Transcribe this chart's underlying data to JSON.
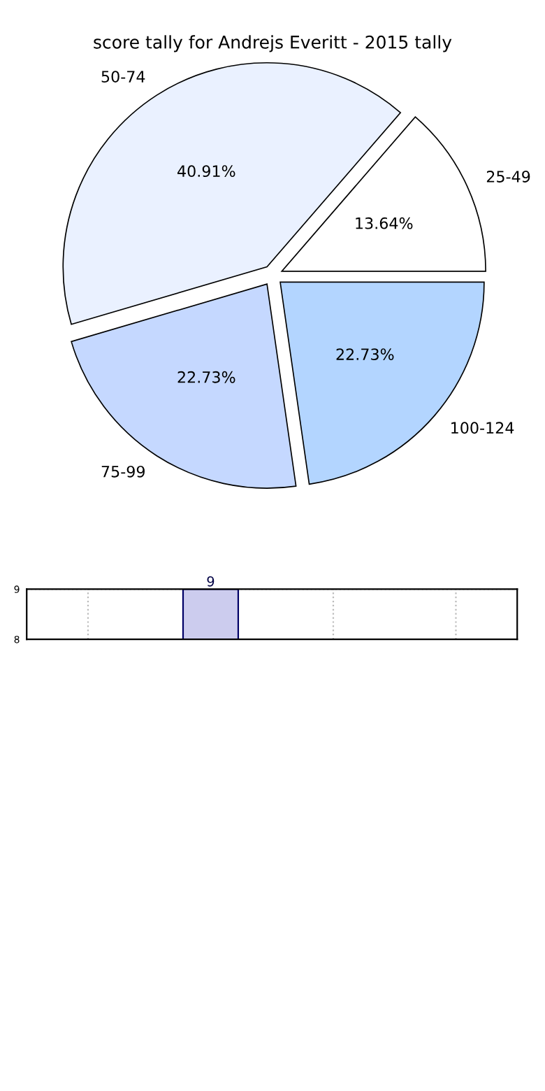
{
  "chart_data": [
    {
      "type": "pie",
      "title": "score tally for Andrejs Everitt - 2015 tally",
      "categories": [
        "25-49",
        "50-74",
        "75-99",
        "100-124"
      ],
      "values": [
        13.64,
        40.91,
        22.73,
        22.73
      ],
      "colors": [
        "#ffffff",
        "#eaf1ff",
        "#c5d8ff",
        "#b3d5ff"
      ],
      "value_labels": [
        "13.64%",
        "40.91%",
        "22.73%",
        "22.73%"
      ]
    },
    {
      "type": "bar",
      "categories": [
        null,
        null,
        null,
        null
      ],
      "values": [
        null,
        9,
        null,
        null
      ],
      "color": "#ccccee",
      "ylim": [
        8,
        9
      ],
      "yticks": [
        8,
        9
      ],
      "grid": true,
      "tick_labels": "y",
      "data_labels": true
    }
  ]
}
